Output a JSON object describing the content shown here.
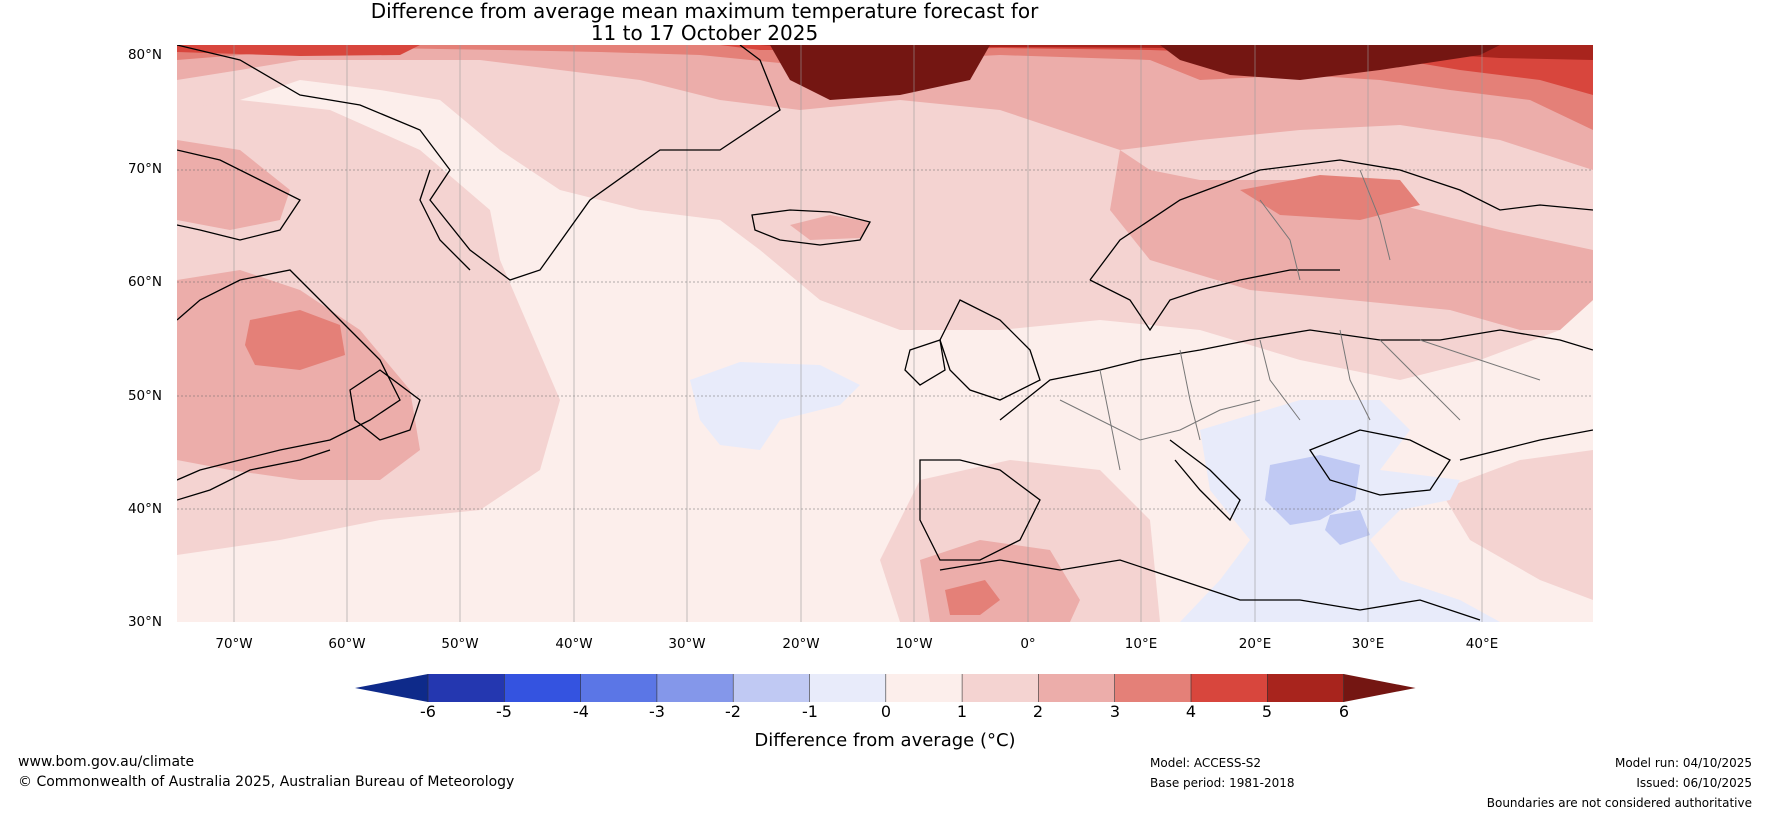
{
  "title": {
    "line1": "Difference from average mean maximum temperature forecast for",
    "line2": "11 to 17 October 2025"
  },
  "map": {
    "lat_labels": [
      "80°N",
      "70°N",
      "60°N",
      "50°N",
      "40°N",
      "30°N"
    ],
    "lat_values": [
      80,
      70,
      60,
      50,
      40,
      30
    ],
    "lon_labels": [
      "70°W",
      "60°W",
      "50°W",
      "40°W",
      "30°W",
      "20°W",
      "10°W",
      "0°",
      "10°E",
      "20°E",
      "30°E",
      "40°E"
    ],
    "lon_values": [
      -70,
      -60,
      -50,
      -40,
      -30,
      -20,
      -10,
      0,
      10,
      20,
      30,
      40
    ],
    "lon_range": [
      -75,
      50
    ],
    "lat_range": [
      30,
      81
    ]
  },
  "colorbar": {
    "labels": [
      "-6",
      "-5",
      "-4",
      "-3",
      "-2",
      "-1",
      "0",
      "1",
      "2",
      "3",
      "4",
      "5",
      "6"
    ],
    "colors": [
      "#0e2a8a",
      "#2437b0",
      "#3453e0",
      "#5b76e6",
      "#8497ea",
      "#c0c9f3",
      "#e8ebfa",
      "#fceeeb",
      "#f4d3d1",
      "#ecadaa",
      "#e48078",
      "#d8463d",
      "#a8241d",
      "#741612"
    ],
    "axis_label": "Difference from average (°C)"
  },
  "footer": {
    "website": "www.bom.gov.au/climate",
    "copyright": "© Commonwealth of Australia 2025, Australian Bureau of Meteorology",
    "model": "Model: ACCESS-S2",
    "base_period": "Base period: 1981-2018",
    "model_run": "Model run: 04/10/2025",
    "issued": "Issued: 06/10/2025",
    "disclaimer": "Boundaries are not considered authoritative"
  }
}
